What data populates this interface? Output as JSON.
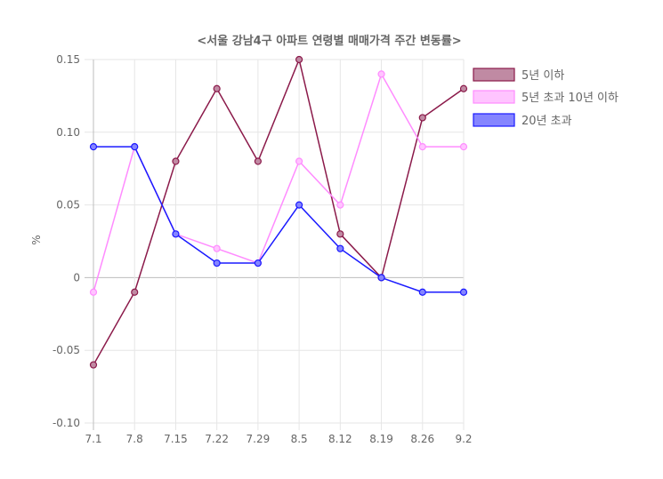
{
  "chart_data": {
    "type": "line",
    "title": "<서울 강남4구 아파트 연령별 매매가격 주간 변동률>",
    "xlabel": "",
    "ylabel": "%",
    "categories": [
      "7.1",
      "7.8",
      "7.15",
      "7.22",
      "7.29",
      "8.5",
      "8.12",
      "8.19",
      "8.26",
      "9.2"
    ],
    "ylim": [
      -0.1,
      0.15
    ],
    "yticks": [
      "0.15",
      "0.10",
      "0.05",
      "0",
      "-0.05",
      "-0.10"
    ],
    "ytick_values": [
      0.15,
      0.1,
      0.05,
      0,
      -0.05,
      -0.1
    ],
    "grid": true,
    "legend_position": "right",
    "series": [
      {
        "name": "5년 이하",
        "color": "#8b1a4a",
        "fill": "#c08aa3",
        "values": [
          -0.06,
          -0.01,
          0.08,
          0.13,
          0.08,
          0.15,
          0.03,
          0.0,
          0.11,
          0.13
        ]
      },
      {
        "name": "5년 초과 10년 이하",
        "color": "#ff8cff",
        "fill": "#ffc4ff",
        "values": [
          -0.01,
          0.09,
          0.03,
          0.02,
          0.01,
          0.08,
          0.05,
          0.14,
          0.09,
          0.09
        ]
      },
      {
        "name": "20년 초과",
        "color": "#1a1aff",
        "fill": "#8585ff",
        "values": [
          0.09,
          0.09,
          0.03,
          0.01,
          0.01,
          0.05,
          0.02,
          0.0,
          -0.01,
          -0.01
        ]
      }
    ]
  }
}
